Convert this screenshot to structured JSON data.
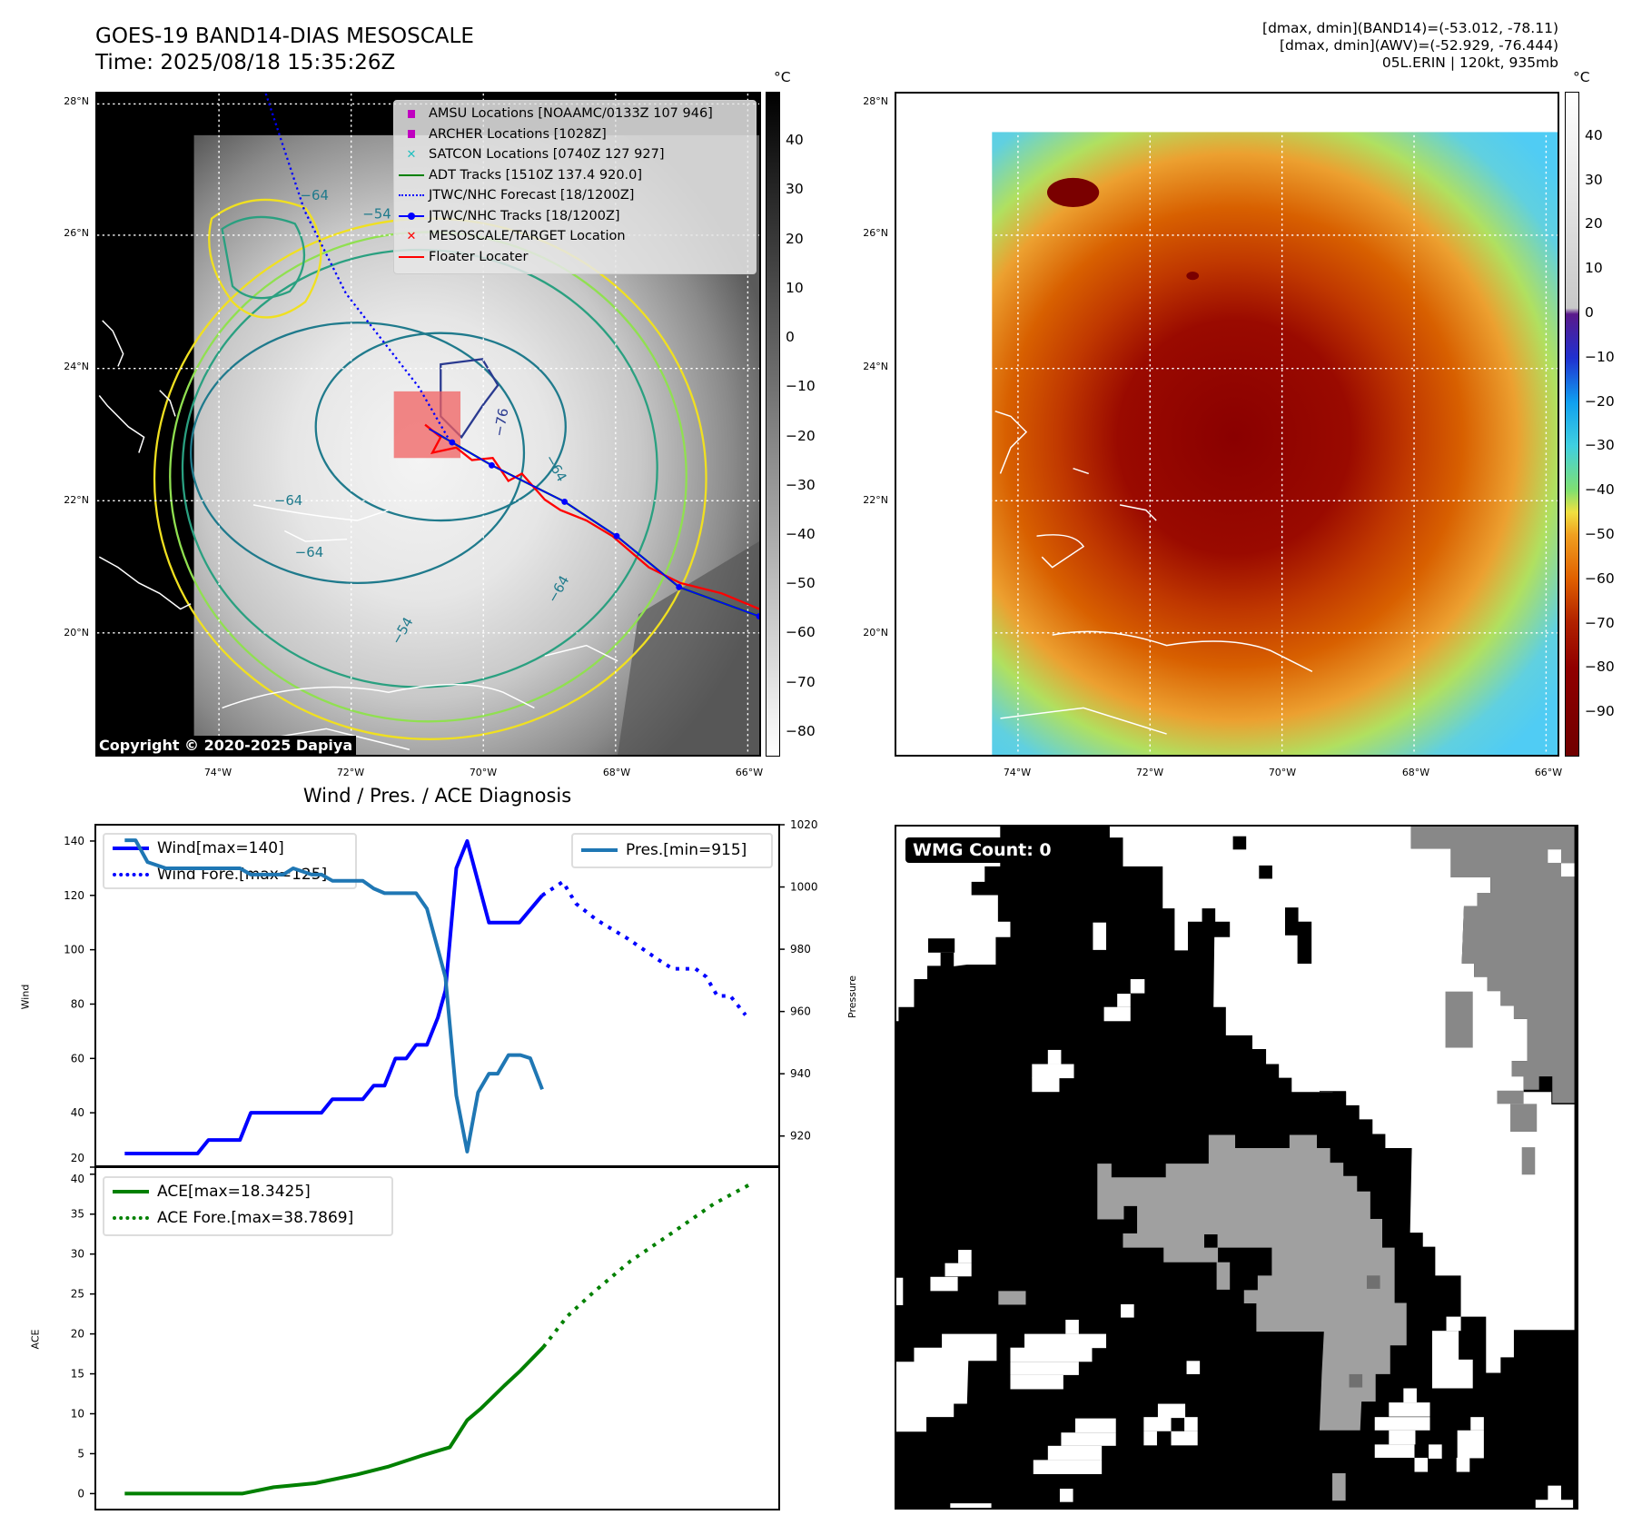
{
  "title": {
    "line1": "GOES-19 BAND14-DIAS MESOSCALE",
    "line2": "Time: 2025/08/18 15:35:26Z"
  },
  "info": {
    "line1": "[dmax, dmin](BAND14)=(-53.012, -78.11)",
    "line2": "[dmax, dmin](AWV)=(-52.929, -76.444)",
    "line3": "05L.ERIN | 120kt, 935mb"
  },
  "map": {
    "lat_labels": [
      "28°N",
      "26°N",
      "24°N",
      "22°N",
      "20°N"
    ],
    "lon_labels": [
      "74°W",
      "72°W",
      "70°W",
      "68°W",
      "66°W"
    ],
    "contour_labels": [
      "−64",
      "−54",
      "−76",
      "−64",
      "−64",
      "−64",
      "−54",
      "−64"
    ],
    "copyright": "Copyright © 2020-2025 Dapiya",
    "legend": [
      {
        "label": "AMSU Locations [NOAAMC/0133Z 107 946]",
        "marker": "square",
        "color": "#c000c0"
      },
      {
        "label": "ARCHER Locations [1028Z]",
        "marker": "square",
        "color": "#c000c0"
      },
      {
        "label": "SATCON Locations [0740Z 127 927]",
        "marker": "x",
        "color": "#20c0c0"
      },
      {
        "label": "ADT Tracks [1510Z 137.4 920.0]",
        "marker": "line",
        "color": "#008000"
      },
      {
        "label": "JTWC/NHC Forecast [18/1200Z]",
        "marker": "dotted",
        "color": "#0000ff"
      },
      {
        "label": "JTWC/NHC Tracks [18/1200Z]",
        "marker": "line-dot",
        "color": "#0000ff"
      },
      {
        "label": "MESOSCALE/TARGET Location",
        "marker": "x",
        "color": "#ff0000"
      },
      {
        "label": "Floater Locater",
        "marker": "line",
        "color": "#ff0000"
      }
    ]
  },
  "colorbars": [
    {
      "unit": "°C",
      "ticks": [
        "40",
        "30",
        "20",
        "10",
        "0",
        "−10",
        "−20",
        "−30",
        "−40",
        "−50",
        "−60",
        "−70",
        "−80"
      ],
      "values": [
        40,
        30,
        20,
        10,
        0,
        -10,
        -20,
        -30,
        -40,
        -50,
        -60,
        -70,
        -80
      ],
      "range": [
        -85,
        50
      ]
    },
    {
      "unit": "°C",
      "ticks": [
        "40",
        "30",
        "20",
        "10",
        "0",
        "−10",
        "−20",
        "−30",
        "−40",
        "−50",
        "−60",
        "−70",
        "−80",
        "−90"
      ],
      "values": [
        40,
        30,
        20,
        10,
        0,
        -10,
        -20,
        -30,
        -40,
        -50,
        -60,
        -70,
        -80,
        -90
      ],
      "range": [
        -100,
        50
      ]
    }
  ],
  "wmg": {
    "label": "WMG Count: 0"
  },
  "chart_data": [
    {
      "type": "line",
      "title": "Wind / Pres. / ACE Diagnosis",
      "ylabel": "Wind",
      "ylabel_right": "Pressure",
      "xlim": [
        -2.7,
        60.2
      ],
      "ylim": [
        20,
        146
      ],
      "ylim_right": [
        910,
        1020
      ],
      "yticks": [
        20,
        40,
        60,
        80,
        100,
        120,
        140
      ],
      "yticks_right": [
        920,
        940,
        960,
        980,
        1000,
        1020
      ],
      "series": [
        {
          "name": "Wind[max=140]",
          "axis": "left",
          "style": "solid",
          "color": "#0000ff",
          "x": [
            0,
            6.7,
            7.7,
            10.6,
            11.6,
            18.1,
            19.1,
            21.9,
            22.9,
            23.9,
            24.9,
            25.9,
            26.8,
            27.8,
            28.8,
            29.5,
            30.5,
            31.5,
            33.5,
            36.3,
            38.4
          ],
          "y": [
            25,
            25,
            30,
            30,
            40,
            40,
            45,
            45,
            50,
            50,
            60,
            60,
            65,
            65,
            75,
            85,
            130,
            140,
            110,
            110,
            120
          ]
        },
        {
          "name": "Wind Fore.[max=125]",
          "axis": "left",
          "style": "dotted",
          "color": "#0000ff",
          "x": [
            38.4,
            40.3,
            41.5,
            43.4,
            46.3,
            49.2,
            50.4,
            52.5,
            53.5,
            54.5,
            55.7,
            57.1
          ],
          "y": [
            120,
            125,
            117,
            111,
            104,
            96,
            93,
            93,
            90,
            83,
            83,
            76
          ]
        },
        {
          "name": "Pres.[min=915]",
          "axis": "right",
          "style": "solid",
          "color": "#1f77b4",
          "x": [
            0,
            1,
            2.1,
            3.8,
            10.6,
            11.6,
            14.6,
            15.5,
            17.2,
            18.1,
            19.1,
            21.9,
            22.9,
            23.9,
            26.8,
            27.8,
            29.5,
            30.5,
            31.5,
            32.5,
            33.5,
            34.3,
            35.3,
            36.4,
            37.3,
            38.4
          ],
          "y": [
            1015,
            1015,
            1008,
            1006,
            1006,
            1004,
            1004,
            1006,
            1004,
            1004,
            1002,
            1002,
            999.5,
            998,
            998,
            993,
            971,
            933,
            915,
            934,
            940,
            940,
            946,
            946,
            945,
            935
          ]
        }
      ]
    },
    {
      "type": "line",
      "ylabel": "ACE",
      "xlim": [
        -2.7,
        60.2
      ],
      "ylim": [
        -2,
        41
      ],
      "yticks": [
        0,
        5,
        10,
        15,
        20,
        25,
        30,
        35,
        40
      ],
      "series": [
        {
          "name": "ACE[max=18.3425]",
          "style": "solid",
          "color": "#008000",
          "x": [
            0,
            10.8,
            13.7,
            17.5,
            21.4,
            24.3,
            27.2,
            29.9,
            31.5,
            32.8,
            34.9,
            36.4,
            38.5
          ],
          "y": [
            0,
            0,
            0.8,
            1.3,
            2.4,
            3.4,
            4.7,
            5.8,
            9.2,
            10.7,
            13.5,
            15.4,
            18.34
          ]
        },
        {
          "name": "ACE Fore.[max=38.7869]",
          "style": "dotted",
          "color": "#008000",
          "x": [
            38.5,
            40.7,
            43.1,
            46.5,
            50.4,
            54.2,
            57.6
          ],
          "y": [
            18.34,
            22.2,
            25.2,
            29.1,
            32.7,
            36.3,
            38.79
          ]
        }
      ]
    }
  ]
}
